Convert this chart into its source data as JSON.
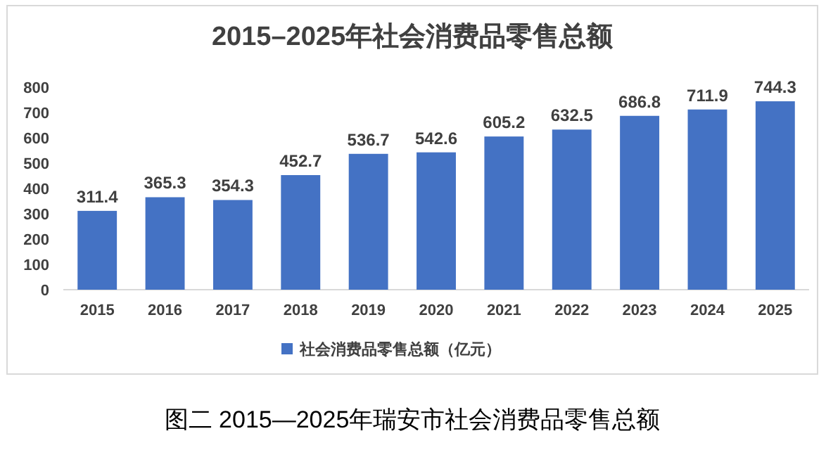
{
  "chart_data": {
    "type": "bar",
    "title": "2015–2025年社会消费品零售总额",
    "categories": [
      "2015",
      "2016",
      "2017",
      "2018",
      "2019",
      "2020",
      "2021",
      "2022",
      "2023",
      "2024",
      "2025"
    ],
    "series": [
      {
        "name": "社会消费品零售总额（亿元）",
        "color": "#4472c4",
        "values": [
          311.4,
          365.3,
          354.3,
          452.7,
          536.7,
          542.6,
          605.2,
          632.5,
          686.8,
          711.9,
          744.3
        ]
      }
    ],
    "ylim": [
      0,
      800
    ],
    "yticks": [
      0,
      100,
      200,
      300,
      400,
      500,
      600,
      700,
      800
    ],
    "data_labels": true,
    "legend": "bottom",
    "grid": false,
    "annotations": [
      "图二 2015—2025年瑞安市社会消费品零售总额"
    ]
  }
}
